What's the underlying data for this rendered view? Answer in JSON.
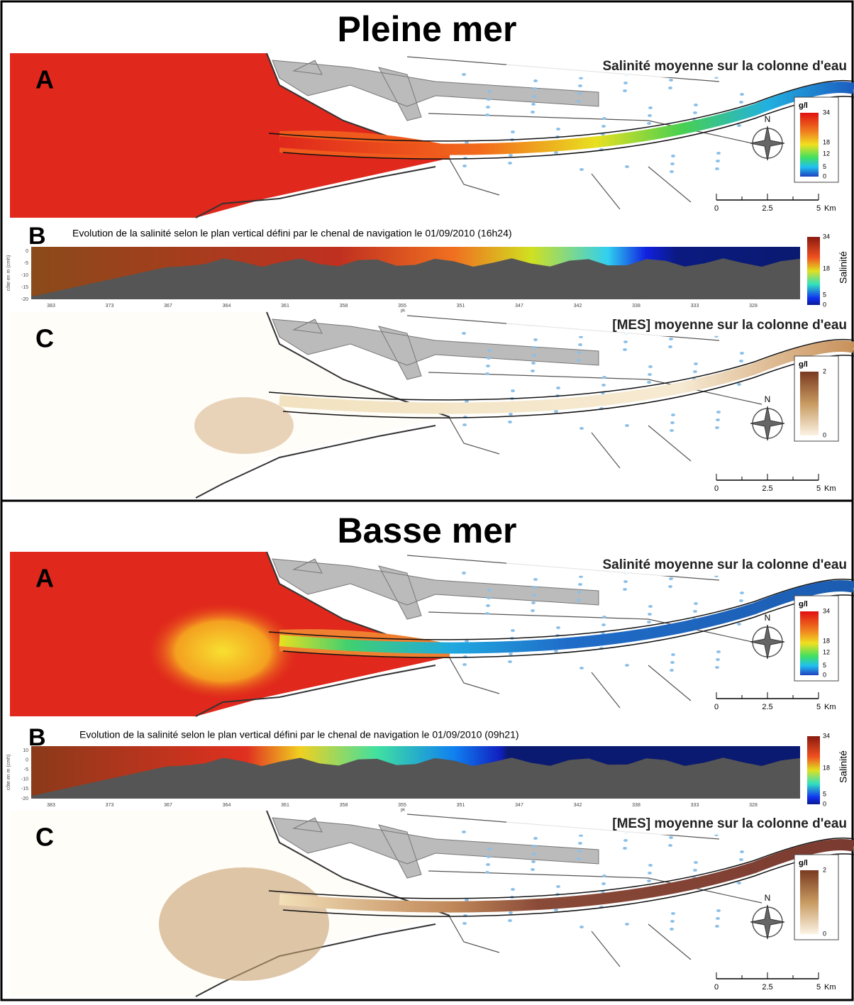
{
  "sections": [
    {
      "title": "Pleine mer",
      "map_a": {
        "letter": "A",
        "title": "Salinité moyenne sur la colonne d'eau",
        "legend_unit": "g/l",
        "legend_ticks": [
          "34",
          "18",
          "12",
          "5",
          "0"
        ],
        "north": "N",
        "scale_ticks": [
          "0",
          "2.5",
          "5"
        ],
        "scale_unit": "Km"
      },
      "profile_b": {
        "letter": "B",
        "title": "Evolution de la salinité selon le plan vertical défini par le chenal de navigation le 01/09/2010 (16h24)",
        "y_label": "côte en m (cmh)",
        "y_ticks": [
          "0",
          "-5",
          "-10",
          "-15",
          "-20"
        ],
        "x_ticks": [
          "383",
          "373",
          "367",
          "364",
          "361",
          "358",
          "355",
          "351",
          "347",
          "342",
          "338",
          "333",
          "328"
        ],
        "x_label": "pk",
        "colorbar_label": "Salinité",
        "colorbar_ticks": [
          "34",
          "18",
          "5",
          "0"
        ]
      },
      "map_c": {
        "letter": "C",
        "title": "[MES] moyenne sur la colonne d'eau",
        "legend_unit": "g/l",
        "legend_ticks": [
          "2",
          "0"
        ],
        "north": "N",
        "scale_ticks": [
          "0",
          "2.5",
          "5"
        ],
        "scale_unit": "Km"
      }
    },
    {
      "title": "Basse mer",
      "map_a": {
        "letter": "A",
        "title": "Salinité moyenne sur la colonne d'eau",
        "legend_unit": "g/l",
        "legend_ticks": [
          "34",
          "18",
          "12",
          "5",
          "0"
        ],
        "north": "N",
        "scale_ticks": [
          "0",
          "2.5",
          "5"
        ],
        "scale_unit": "Km"
      },
      "profile_b": {
        "letter": "B",
        "title": "Evolution de la salinité selon le plan vertical défini par le chenal de navigation le 01/09/2010 (09h21)",
        "y_label": "côte en m (cmh)",
        "y_ticks": [
          "10",
          "0",
          "-5",
          "-10",
          "-15",
          "-20"
        ],
        "x_ticks": [
          "383",
          "373",
          "367",
          "364",
          "361",
          "358",
          "355",
          "351",
          "347",
          "342",
          "338",
          "333",
          "328"
        ],
        "x_label": "pk",
        "colorbar_label": "Salinité",
        "colorbar_ticks": [
          "34",
          "18",
          "5",
          "0"
        ]
      },
      "map_c": {
        "letter": "C",
        "title": "[MES] moyenne sur la colonne d'eau",
        "legend_unit": "g/l",
        "legend_ticks": [
          "2",
          "0"
        ],
        "north": "N",
        "scale_ticks": [
          "0",
          "2.5",
          "5"
        ],
        "scale_unit": "Km"
      }
    }
  ]
}
